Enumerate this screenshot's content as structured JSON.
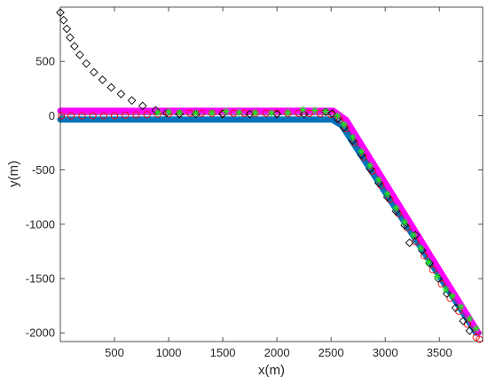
{
  "chart_data": {
    "type": "scatter",
    "title": "",
    "xlabel": "x(m)",
    "ylabel": "y(m)",
    "xlim": [
      0,
      3900
    ],
    "ylim": [
      -2080,
      1000
    ],
    "xticks": [
      500,
      1000,
      1500,
      2000,
      2500,
      3000,
      3500
    ],
    "yticks": [
      -2000,
      -1500,
      -1000,
      -500,
      0,
      500
    ],
    "grid": false,
    "legend": "none",
    "series": [
      {
        "marker": "line",
        "color": "#0072BD",
        "style": "thick-line",
        "points": [
          [
            0,
            -35
          ],
          [
            2510,
            -35
          ],
          [
            2600,
            -90
          ],
          [
            3840,
            -2000
          ]
        ]
      },
      {
        "marker": "line",
        "color": "#FF00FF",
        "style": "thick-line",
        "points": [
          [
            0,
            45
          ],
          [
            2520,
            45
          ],
          [
            2640,
            -40
          ],
          [
            3860,
            -2000
          ]
        ]
      },
      {
        "marker": "line",
        "color": "#7E2F8E",
        "style": "thin-line",
        "points": [
          [
            0,
            10
          ],
          [
            2500,
            10
          ],
          [
            2610,
            -50
          ],
          [
            3850,
            -2020
          ]
        ]
      },
      {
        "marker": "circle",
        "color": "#FF0000",
        "points": [
          [
            10,
            0
          ],
          [
            100,
            0
          ],
          [
            200,
            0
          ],
          [
            300,
            0
          ],
          [
            400,
            0
          ],
          [
            500,
            0
          ],
          [
            600,
            5
          ],
          [
            700,
            8
          ],
          [
            800,
            10
          ],
          [
            900,
            15
          ],
          [
            1000,
            18
          ],
          [
            1100,
            20
          ],
          [
            1200,
            22
          ],
          [
            1300,
            22
          ],
          [
            1400,
            22
          ],
          [
            1500,
            22
          ],
          [
            1600,
            22
          ],
          [
            1700,
            22
          ],
          [
            1800,
            22
          ],
          [
            1900,
            22
          ],
          [
            2000,
            22
          ],
          [
            2100,
            22
          ],
          [
            2200,
            22
          ],
          [
            2300,
            22
          ],
          [
            2400,
            20
          ],
          [
            2500,
            10
          ],
          [
            2580,
            -40
          ],
          [
            2640,
            -120
          ],
          [
            2720,
            -250
          ],
          [
            2800,
            -380
          ],
          [
            2880,
            -510
          ],
          [
            2960,
            -640
          ],
          [
            3040,
            -770
          ],
          [
            3120,
            -900
          ],
          [
            3200,
            -1030
          ],
          [
            3280,
            -1160
          ],
          [
            3360,
            -1290
          ],
          [
            3440,
            -1420
          ],
          [
            3520,
            -1550
          ],
          [
            3600,
            -1680
          ],
          [
            3680,
            -1800
          ],
          [
            3760,
            -1920
          ],
          [
            3840,
            -2040
          ],
          [
            3870,
            -2060
          ]
        ]
      },
      {
        "marker": "diamond",
        "color": "#000000",
        "points": [
          [
            0,
            950
          ],
          [
            30,
            880
          ],
          [
            60,
            800
          ],
          [
            90,
            720
          ],
          [
            130,
            640
          ],
          [
            180,
            560
          ],
          [
            240,
            480
          ],
          [
            310,
            400
          ],
          [
            390,
            330
          ],
          [
            470,
            260
          ],
          [
            560,
            200
          ],
          [
            660,
            140
          ],
          [
            760,
            90
          ],
          [
            880,
            50
          ],
          [
            980,
            25
          ],
          [
            1100,
            15
          ],
          [
            1250,
            15
          ],
          [
            1500,
            15
          ],
          [
            1750,
            15
          ],
          [
            2000,
            15
          ],
          [
            2250,
            15
          ],
          [
            2450,
            35
          ],
          [
            2510,
            20
          ],
          [
            2560,
            -30
          ],
          [
            2620,
            -110
          ],
          [
            2700,
            -230
          ],
          [
            2780,
            -360
          ],
          [
            2860,
            -490
          ],
          [
            2940,
            -620
          ],
          [
            3020,
            -750
          ],
          [
            3100,
            -880
          ],
          [
            3180,
            -1010
          ],
          [
            3225,
            -1170
          ],
          [
            3280,
            -1100
          ],
          [
            3340,
            -1240
          ],
          [
            3410,
            -1360
          ],
          [
            3490,
            -1500
          ],
          [
            3570,
            -1640
          ],
          [
            3650,
            -1770
          ],
          [
            3720,
            -1890
          ],
          [
            3780,
            -1980
          ]
        ]
      },
      {
        "marker": "asterisk",
        "color": "#22E022",
        "points": [
          [
            900,
            30
          ],
          [
            1000,
            35
          ],
          [
            1100,
            30
          ],
          [
            1250,
            25
          ],
          [
            1400,
            28
          ],
          [
            1530,
            40
          ],
          [
            1650,
            30
          ],
          [
            1800,
            28
          ],
          [
            1950,
            25
          ],
          [
            2100,
            30
          ],
          [
            2240,
            55
          ],
          [
            2350,
            50
          ],
          [
            2450,
            40
          ],
          [
            2560,
            0
          ],
          [
            2620,
            -80
          ],
          [
            2700,
            -200
          ],
          [
            2780,
            -330
          ],
          [
            2860,
            -460
          ],
          [
            2940,
            -590
          ],
          [
            3020,
            -720
          ],
          [
            3100,
            -850
          ],
          [
            3180,
            -980
          ],
          [
            3260,
            -1100
          ],
          [
            3330,
            -1220
          ],
          [
            3400,
            -1350
          ],
          [
            3480,
            -1480
          ],
          [
            3560,
            -1600
          ],
          [
            3620,
            -1660
          ],
          [
            3700,
            -1760
          ],
          [
            3780,
            -1870
          ],
          [
            3840,
            -1960
          ]
        ]
      }
    ]
  }
}
